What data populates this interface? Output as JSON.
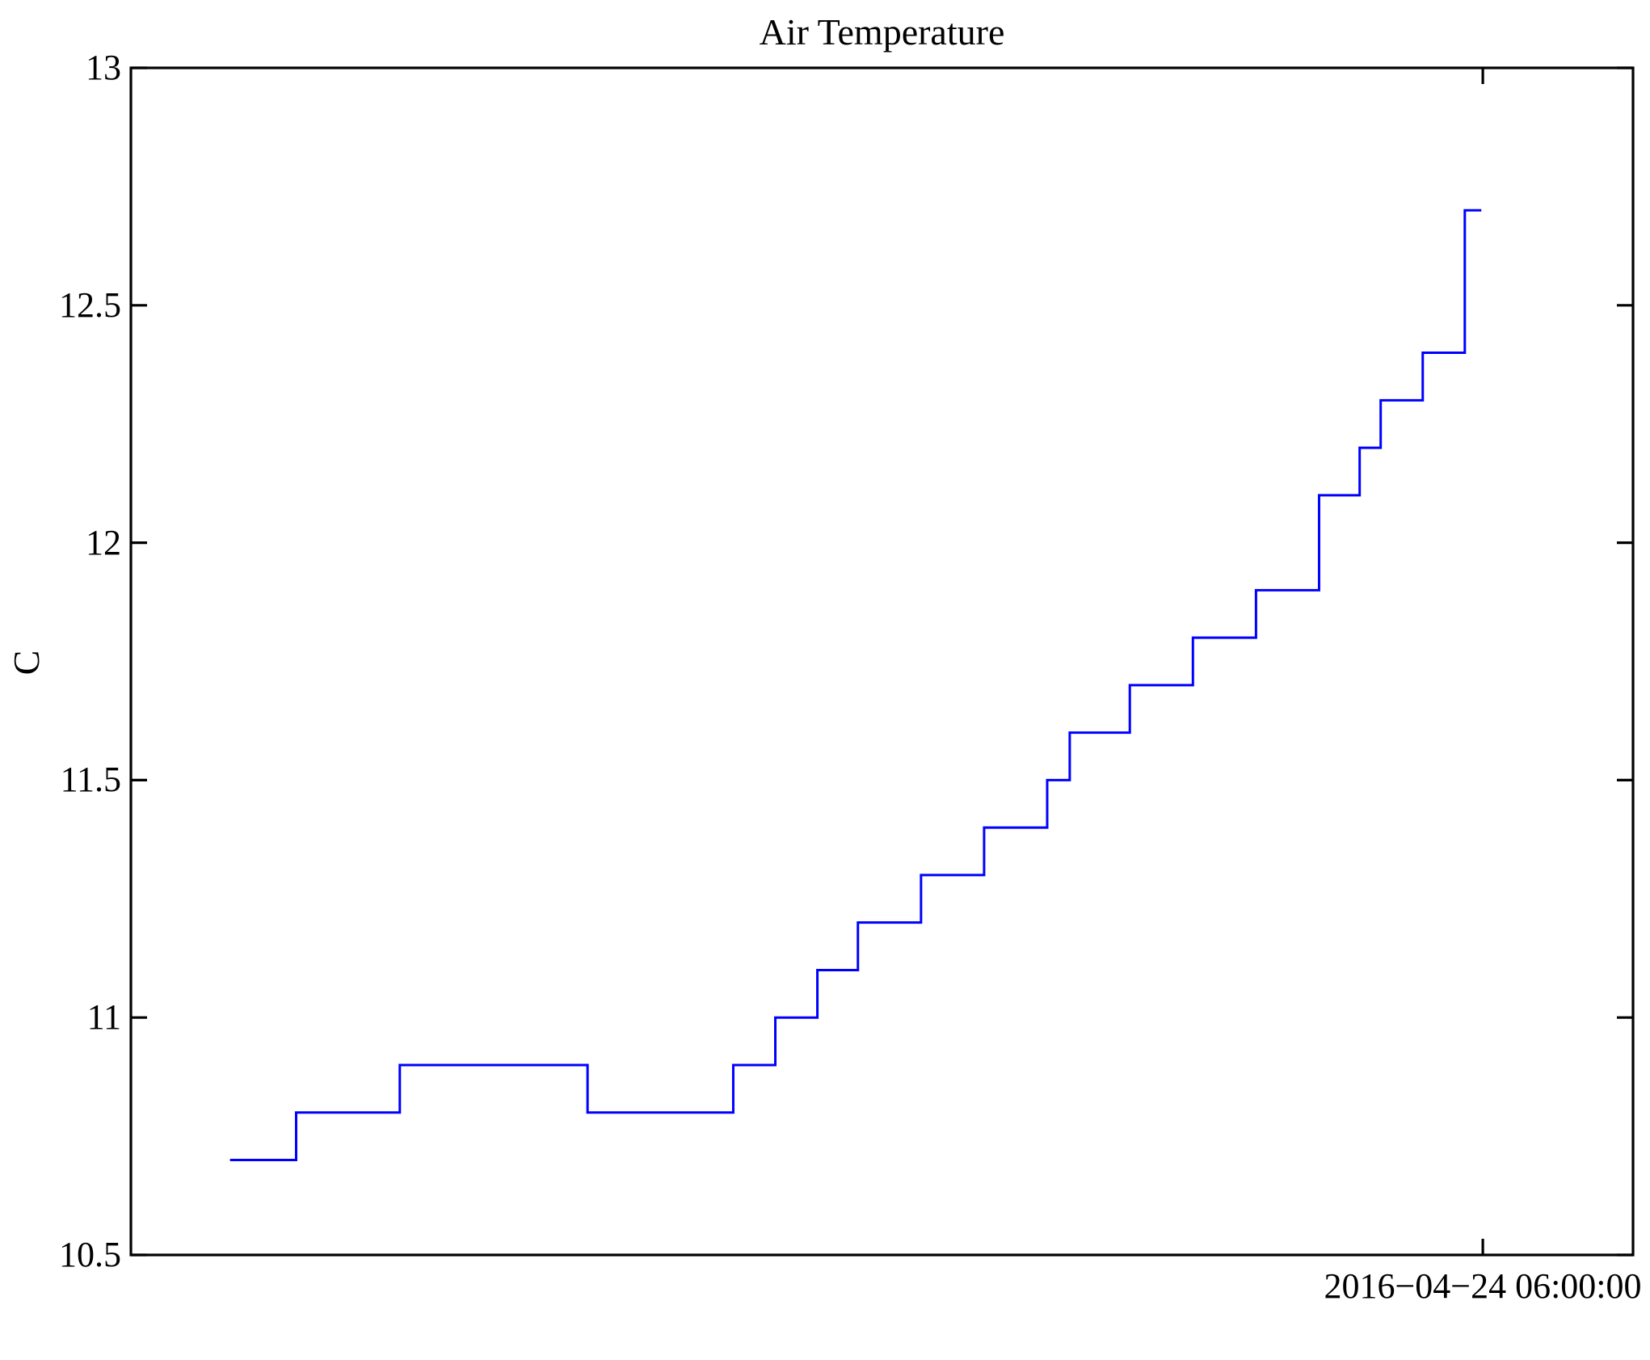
{
  "chart_data": {
    "type": "line",
    "subtype": "step",
    "title": "Air Temperature",
    "ylabel": "C",
    "xlabel": "",
    "ylim": [
      10.5,
      13
    ],
    "grid": false,
    "legend": null,
    "line_color": "#0000ff",
    "axis_color": "#000000",
    "background_color": "#ffffff",
    "y_ticks": [
      {
        "label": "13",
        "value": 13
      },
      {
        "label": "12.5",
        "value": 12.5
      },
      {
        "label": "12",
        "value": 12
      },
      {
        "label": "11.5",
        "value": 11.5
      },
      {
        "label": "11",
        "value": 11
      },
      {
        "label": "10.5",
        "value": 10.5
      }
    ],
    "x_tick": {
      "label": "2016−04−24 06:00:00",
      "position_frac": 0.9
    },
    "series": [
      {
        "name": "air-temperature",
        "units": "C",
        "steps": [
          {
            "x0": 0.066,
            "x1": 0.11,
            "y": 10.7
          },
          {
            "x0": 0.11,
            "x1": 0.179,
            "y": 10.8
          },
          {
            "x0": 0.179,
            "x1": 0.304,
            "y": 10.9
          },
          {
            "x0": 0.304,
            "x1": 0.401,
            "y": 10.8
          },
          {
            "x0": 0.401,
            "x1": 0.429,
            "y": 10.9
          },
          {
            "x0": 0.429,
            "x1": 0.457,
            "y": 11.0
          },
          {
            "x0": 0.457,
            "x1": 0.484,
            "y": 11.1
          },
          {
            "x0": 0.484,
            "x1": 0.526,
            "y": 11.2
          },
          {
            "x0": 0.526,
            "x1": 0.568,
            "y": 11.3
          },
          {
            "x0": 0.568,
            "x1": 0.61,
            "y": 11.4
          },
          {
            "x0": 0.61,
            "x1": 0.625,
            "y": 11.5
          },
          {
            "x0": 0.625,
            "x1": 0.665,
            "y": 11.6
          },
          {
            "x0": 0.665,
            "x1": 0.707,
            "y": 11.7
          },
          {
            "x0": 0.707,
            "x1": 0.749,
            "y": 11.8
          },
          {
            "x0": 0.749,
            "x1": 0.791,
            "y": 11.9
          },
          {
            "x0": 0.791,
            "x1": 0.818,
            "y": 12.1
          },
          {
            "x0": 0.818,
            "x1": 0.832,
            "y": 12.2
          },
          {
            "x0": 0.832,
            "x1": 0.86,
            "y": 12.3
          },
          {
            "x0": 0.86,
            "x1": 0.888,
            "y": 12.4
          },
          {
            "x0": 0.888,
            "x1": 0.899,
            "y": 12.7
          }
        ]
      }
    ]
  }
}
